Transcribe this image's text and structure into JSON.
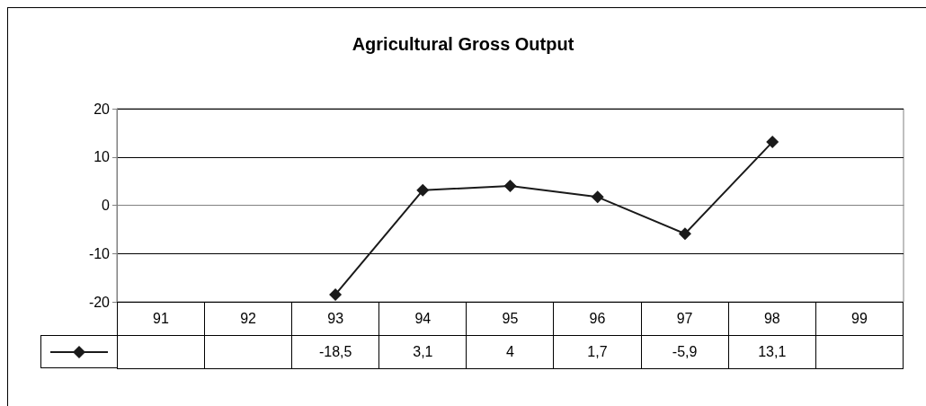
{
  "chart_data": {
    "type": "line",
    "title": "Agricultural Gross Output",
    "categories": [
      "91",
      "92",
      "93",
      "94",
      "95",
      "96",
      "97",
      "98",
      "99"
    ],
    "series": [
      {
        "color": "#1a1a1a",
        "values": [
          null,
          null,
          -18.5,
          3.1,
          4,
          1.7,
          -5.9,
          13.1,
          null
        ],
        "value_labels": [
          null,
          null,
          "-18,5",
          "3,1",
          "4",
          "1,7",
          "-5,9",
          "13,1",
          null
        ]
      }
    ],
    "ylim": [
      -20,
      20
    ],
    "yticks": [
      -20,
      -10,
      0,
      10,
      20
    ],
    "grid": "y",
    "marker": "diamond",
    "line_style": "solid"
  }
}
